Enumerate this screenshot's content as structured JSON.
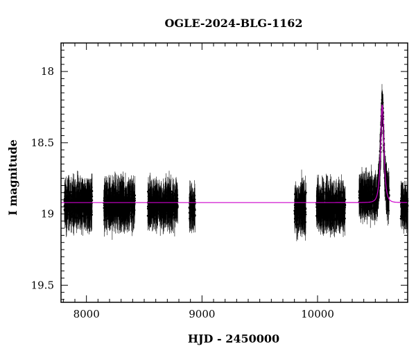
{
  "chart_data": {
    "type": "scatter",
    "title": "OGLE-2024-BLG-1162",
    "xlabel": "HJD - 2450000",
    "ylabel": "I magnitude",
    "xlim": [
      7780,
      10780
    ],
    "ylim": [
      19.62,
      17.8
    ],
    "y_inverted": true,
    "x_ticks": [
      8000,
      9000,
      10000
    ],
    "x_tick_labels": [
      "8000",
      "9000",
      "10000"
    ],
    "y_ticks": [
      18,
      18.5,
      19,
      19.5
    ],
    "y_tick_labels": [
      "18",
      "18.5",
      "19",
      "19.5"
    ],
    "grid": false,
    "series": [
      {
        "style": "points-with-errorbars",
        "color": "#000000",
        "seasons": [
          {
            "x_start": 7810,
            "x_end": 8050,
            "mag_center": 18.93,
            "mag_scatter": 0.09,
            "err": 0.1
          },
          {
            "x_start": 8150,
            "x_end": 8420,
            "mag_center": 18.93,
            "mag_scatter": 0.09,
            "err": 0.1
          },
          {
            "x_start": 8530,
            "x_end": 8790,
            "mag_center": 18.93,
            "mag_scatter": 0.09,
            "err": 0.1
          },
          {
            "x_start": 8890,
            "x_end": 8940,
            "mag_center": 18.95,
            "mag_scatter": 0.1,
            "err": 0.09
          },
          {
            "x_start": 9800,
            "x_end": 9900,
            "mag_center": 18.97,
            "mag_scatter": 0.1,
            "err": 0.1
          },
          {
            "x_start": 9990,
            "x_end": 10240,
            "mag_center": 18.95,
            "mag_scatter": 0.09,
            "err": 0.1
          },
          {
            "x_start": 10360,
            "x_end": 10620,
            "mag_center": 18.88,
            "mag_scatter": 0.08,
            "err": 0.1
          },
          {
            "x_start": 10720,
            "x_end": 10780,
            "mag_center": 18.95,
            "mag_scatter": 0.08,
            "err": 0.09
          }
        ]
      },
      {
        "style": "line",
        "color": "#cc00cc",
        "model": {
          "baseline": 18.92,
          "t0": 10560,
          "u0": 0.6,
          "tE": 22
        },
        "points": [
          [
            7780,
            18.92
          ],
          [
            10400,
            18.92
          ],
          [
            10470,
            18.91
          ],
          [
            10510,
            18.85
          ],
          [
            10535,
            18.7
          ],
          [
            10550,
            18.47
          ],
          [
            10558,
            18.38
          ],
          [
            10566,
            18.44
          ],
          [
            10580,
            18.65
          ],
          [
            10600,
            18.83
          ],
          [
            10640,
            18.9
          ],
          [
            10700,
            18.92
          ],
          [
            10780,
            18.92
          ]
        ]
      }
    ]
  }
}
